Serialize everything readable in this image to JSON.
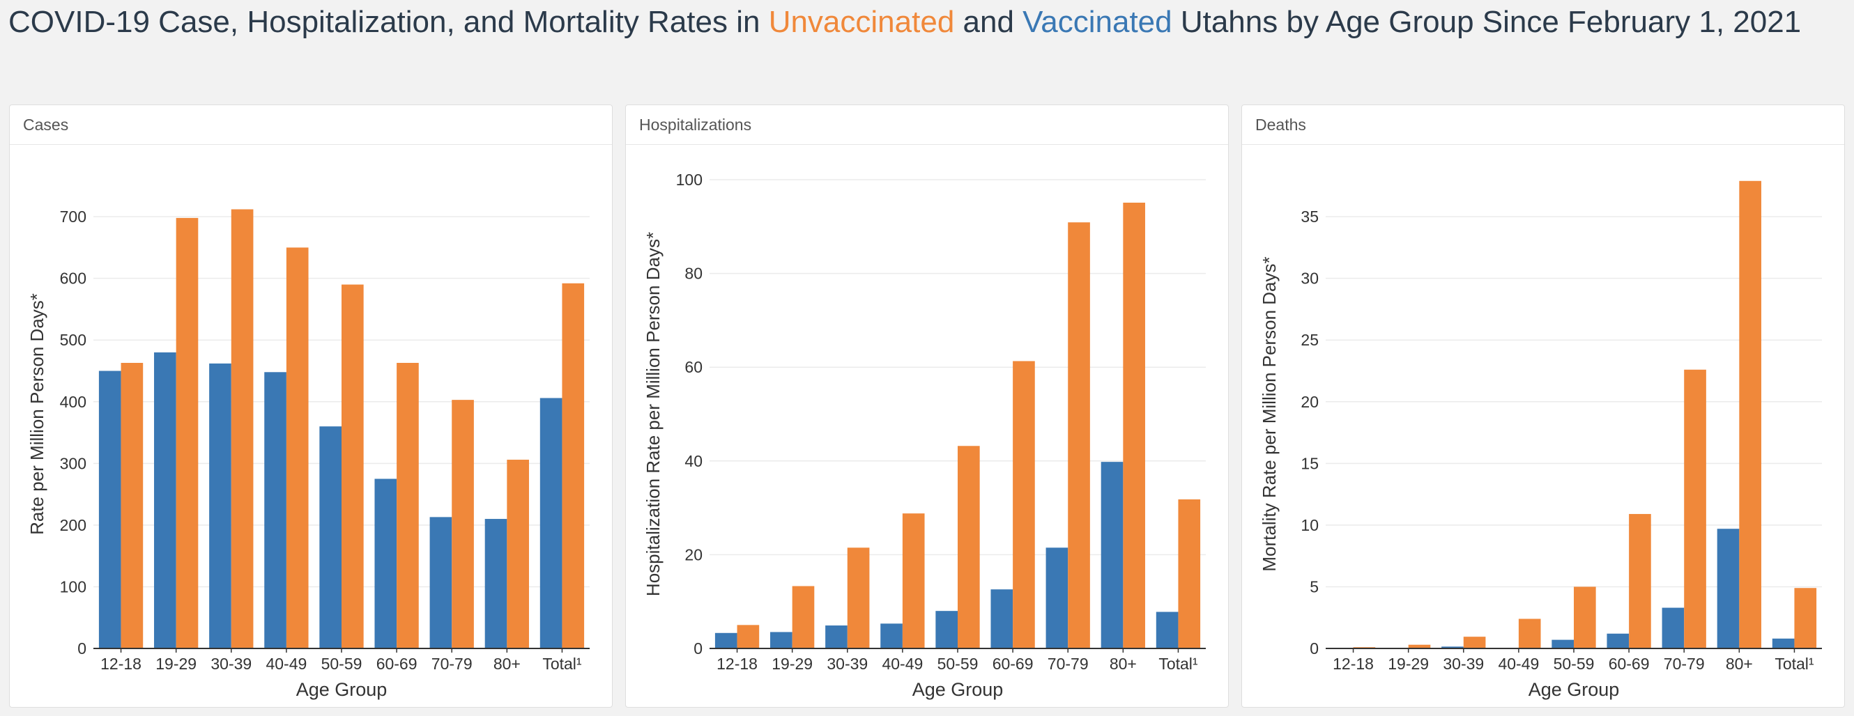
{
  "title": {
    "prefix": "COVID-19 Case, Hospitalization, and Mortality Rates in ",
    "unvax": "Unvaccinated",
    "mid": " and ",
    "vax": "Vaccinated",
    "suffix": " Utahns by Age Group Since February 1, 2021"
  },
  "colors": {
    "vaccinated": "#3a78b4",
    "unvaccinated": "#f0883a",
    "grid": "#ebebeb",
    "axis": "#333333"
  },
  "chart_data": [
    {
      "panel_title": "Cases",
      "type": "bar",
      "xlabel": "Age Group",
      "ylabel": "Rate per Million Person Days*",
      "categories": [
        "12-18",
        "19-29",
        "30-39",
        "40-49",
        "50-59",
        "60-69",
        "70-79",
        "80+",
        "Total¹"
      ],
      "series": [
        {
          "key": "vaccinated",
          "values": [
            450,
            480,
            462,
            448,
            360,
            275,
            213,
            210,
            406
          ]
        },
        {
          "key": "unvaccinated",
          "values": [
            463,
            698,
            712,
            650,
            590,
            463,
            403,
            306,
            592
          ]
        }
      ],
      "ylim": [
        0,
        760
      ],
      "yticks": [
        0,
        100,
        200,
        300,
        400,
        500,
        600,
        700
      ]
    },
    {
      "panel_title": "Hospitalizations",
      "type": "bar",
      "xlabel": "Age Group",
      "ylabel": "Hospitalization Rate per Million Person Days*",
      "categories": [
        "12-18",
        "19-29",
        "30-39",
        "40-49",
        "50-59",
        "60-69",
        "70-79",
        "80+",
        "Total¹"
      ],
      "series": [
        {
          "key": "vaccinated",
          "values": [
            3.3,
            3.5,
            4.9,
            5.3,
            8.0,
            12.6,
            21.5,
            39.8,
            7.8
          ]
        },
        {
          "key": "unvaccinated",
          "values": [
            5.0,
            13.3,
            21.5,
            28.8,
            43.2,
            61.3,
            90.9,
            95.1,
            31.8
          ]
        }
      ],
      "ylim": [
        0,
        100
      ],
      "yticks": [
        0,
        20,
        40,
        60,
        80,
        100
      ]
    },
    {
      "panel_title": "Deaths",
      "type": "bar",
      "xlabel": "Age Group",
      "ylabel": "Mortality Rate per Million Person Days*",
      "categories": [
        "12-18",
        "19-29",
        "30-39",
        "40-49",
        "50-59",
        "60-69",
        "70-79",
        "80+",
        "Total¹"
      ],
      "series": [
        {
          "key": "vaccinated",
          "values": [
            0.0,
            0.05,
            0.15,
            0.05,
            0.7,
            1.2,
            3.3,
            9.7,
            0.8
          ]
        },
        {
          "key": "unvaccinated",
          "values": [
            0.1,
            0.3,
            0.95,
            2.4,
            5.0,
            10.9,
            22.6,
            37.9,
            4.9
          ]
        }
      ],
      "ylim": [
        0,
        38
      ],
      "yticks": [
        0,
        5,
        10,
        15,
        20,
        25,
        30,
        35
      ]
    }
  ]
}
